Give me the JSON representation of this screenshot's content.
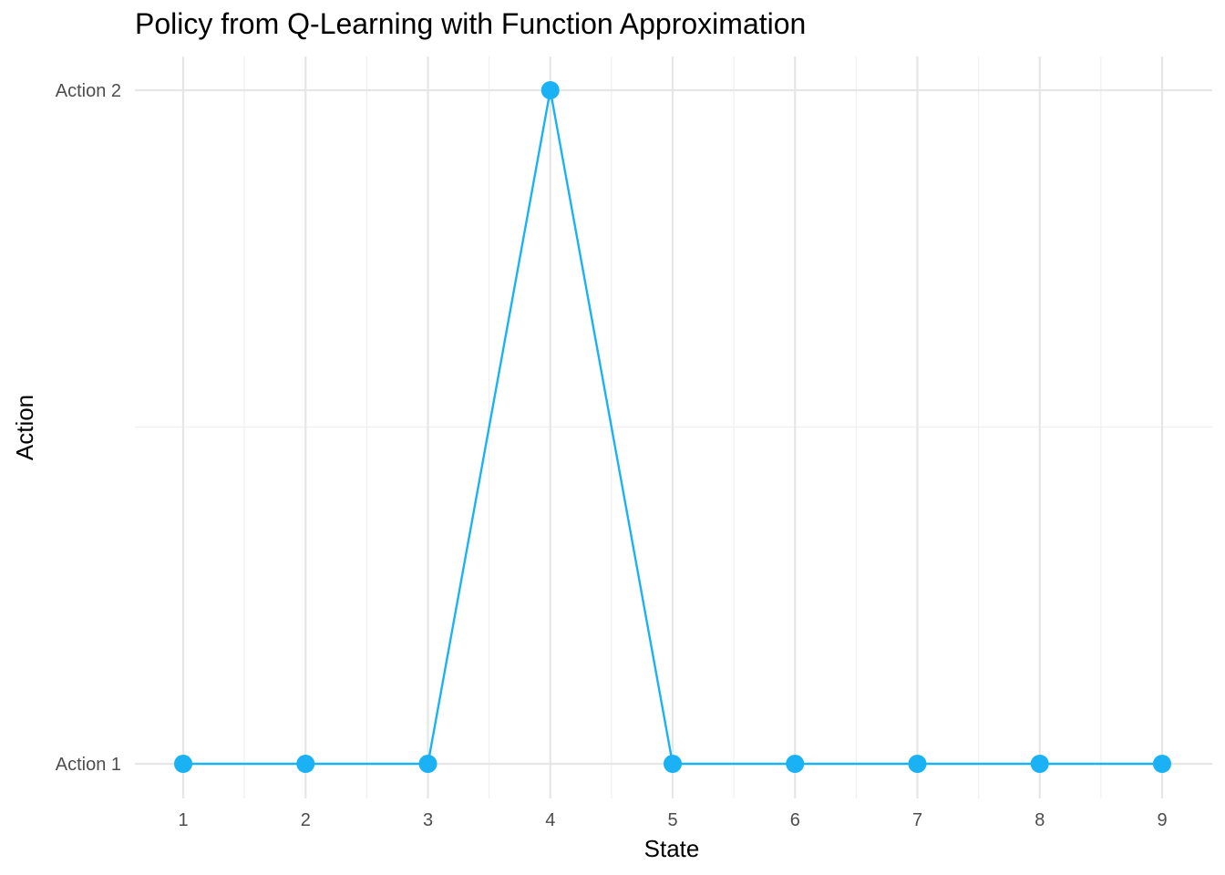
{
  "chart_data": {
    "type": "line",
    "title": "Policy from Q-Learning with Function Approximation",
    "xlabel": "State",
    "ylabel": "Action",
    "x": [
      1,
      2,
      3,
      4,
      5,
      6,
      7,
      8,
      9
    ],
    "x_tick_labels": [
      "1",
      "2",
      "3",
      "4",
      "5",
      "6",
      "7",
      "8",
      "9"
    ],
    "y_categories": [
      "Action 1",
      "Action 2"
    ],
    "series": [
      {
        "values": [
          "Action 1",
          "Action 1",
          "Action 1",
          "Action 2",
          "Action 1",
          "Action 1",
          "Action 1",
          "Action 1",
          "Action 1"
        ],
        "color": "#1AB2F5",
        "markers": true
      }
    ],
    "xlim": [
      0.6,
      9.4
    ],
    "grid": true,
    "legend": "none"
  }
}
